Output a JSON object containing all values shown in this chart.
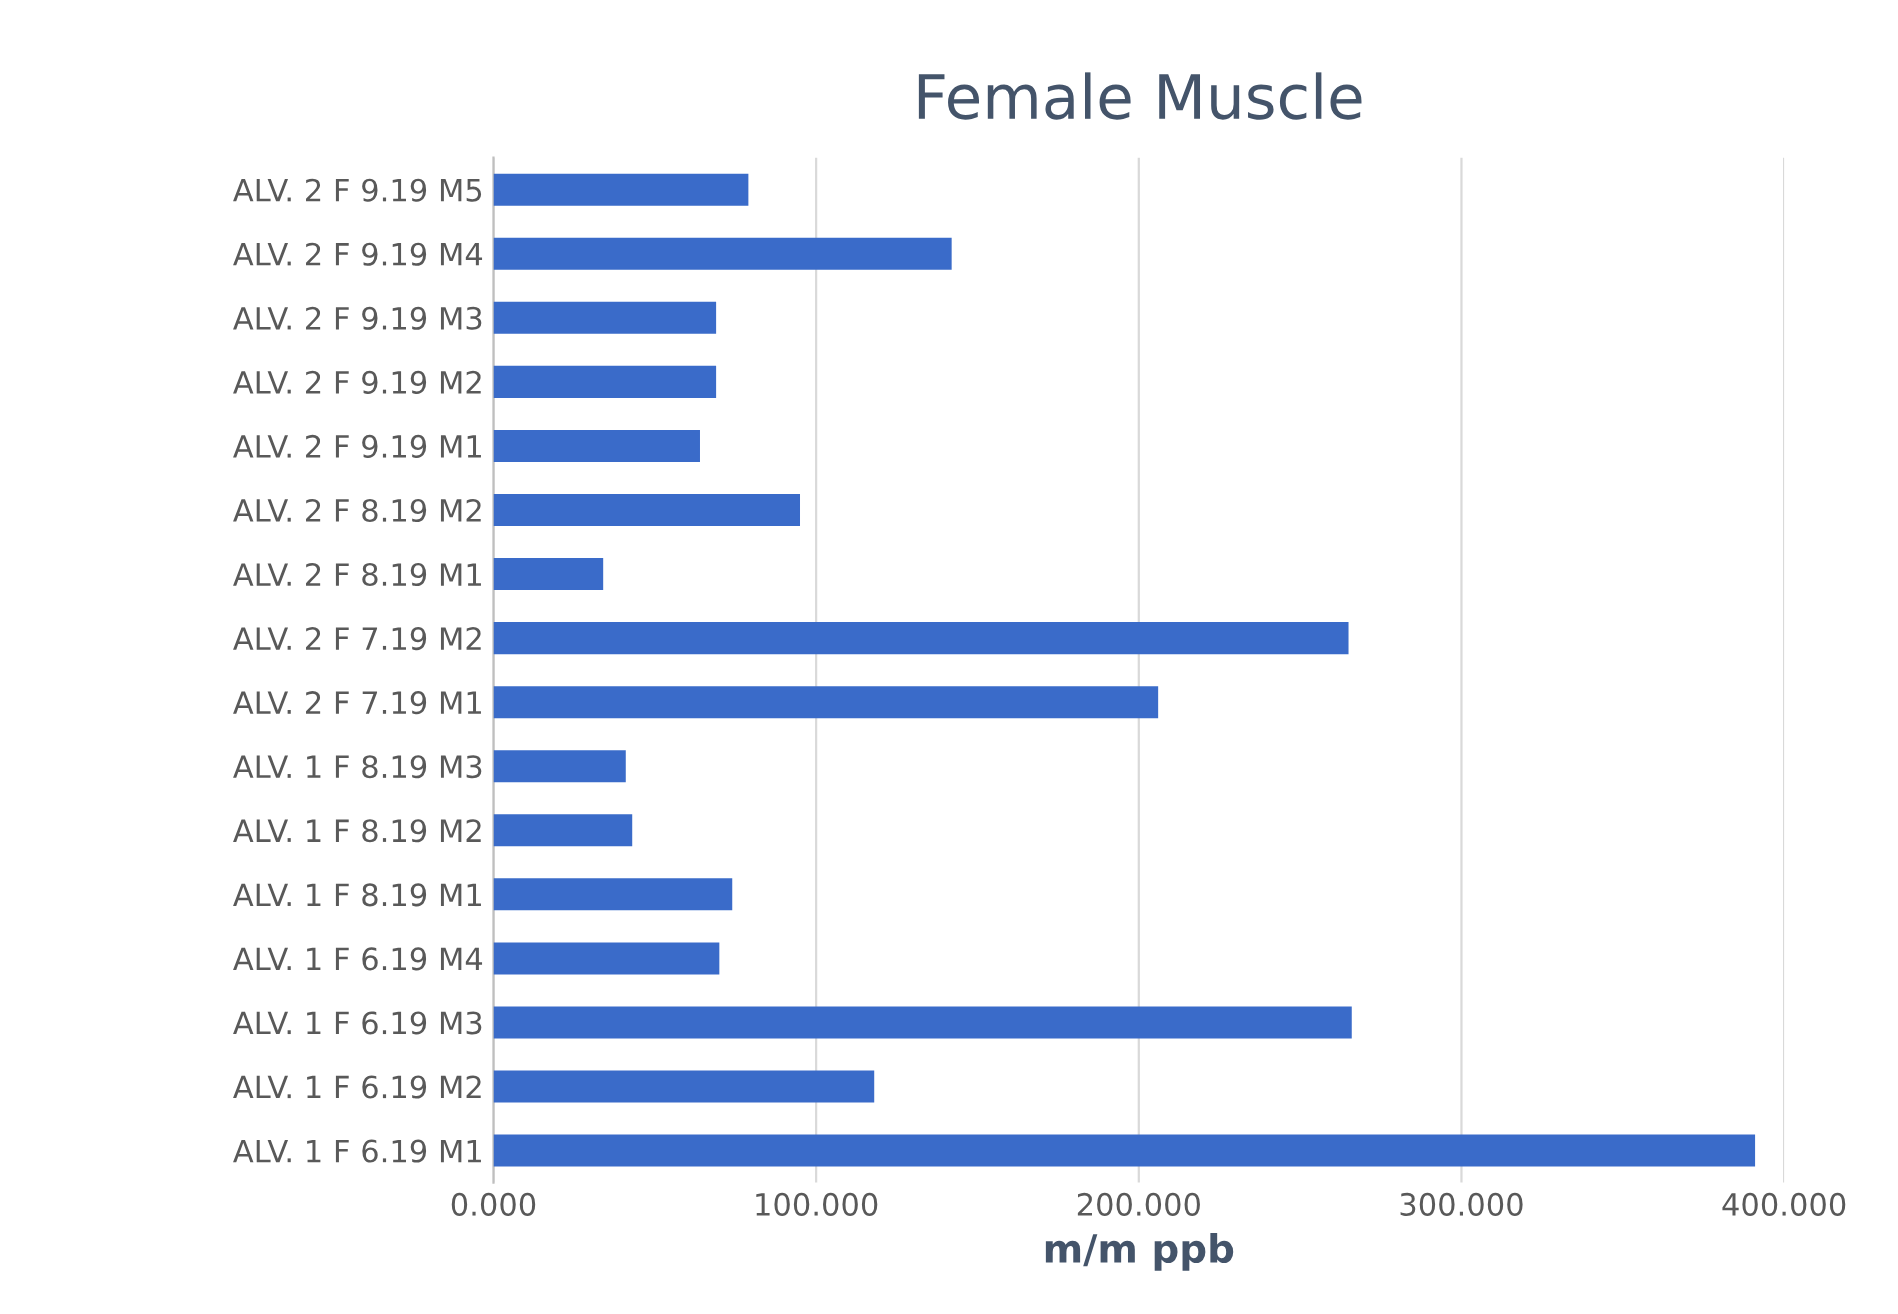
{
  "chart_data": {
    "type": "bar",
    "orientation": "horizontal",
    "title": "Female Muscle",
    "xlabel": "m/m ppb",
    "categories": [
      "ALV. 2 F 9.19 M5",
      "ALV. 2 F 9.19 M4",
      "ALV. 2 F 9.19 M3",
      "ALV. 2 F 9.19 M2",
      "ALV. 2 F 9.19 M1",
      "ALV. 2 F 8.19 M2",
      "ALV. 2 F 8.19 M1",
      "ALV. 2 F 7.19 M2",
      "ALV. 2 F 7.19 M1",
      "ALV. 1 F 8.19 M3",
      "ALV. 1 F 8.19 M2",
      "ALV. 1 F 8.19 M1",
      "ALV. 1 F 6.19 M4",
      "ALV. 1 F 6.19 M3",
      "ALV. 1 F 6.19 M2",
      "ALV. 1 F 6.19 M1"
    ],
    "values": [
      79,
      142,
      69,
      69,
      64,
      95,
      34,
      265,
      206,
      41,
      43,
      74,
      70,
      266,
      118,
      391
    ],
    "color": "#3a6bc9",
    "xlim": [
      0,
      400
    ],
    "xticks": [
      {
        "value": 0,
        "label": "0.000"
      },
      {
        "value": 100,
        "label": "100.000"
      },
      {
        "value": 200,
        "label": "200.000"
      },
      {
        "value": 300,
        "label": "300.000"
      },
      {
        "value": 400,
        "label": "400.000"
      }
    ],
    "grid": "x"
  }
}
